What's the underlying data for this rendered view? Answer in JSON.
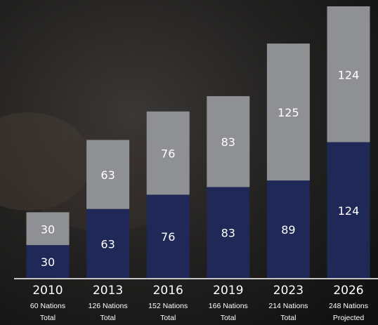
{
  "chart_data": {
    "type": "stacked_bar",
    "categories": [
      "2010",
      "2013",
      "2016",
      "2019",
      "2023",
      "2026"
    ],
    "category_notes": [
      [
        "60 Nations",
        "Total"
      ],
      [
        "126 Nations",
        "Total"
      ],
      [
        "152 Nations",
        "Total"
      ],
      [
        "166 Nations",
        "Total"
      ],
      [
        "214 Nations",
        "Total"
      ],
      [
        "248 Nations",
        "Projected"
      ]
    ],
    "series": [
      {
        "color": "#1f2857",
        "values": [
          30,
          63,
          76,
          83,
          89,
          124
        ]
      },
      {
        "color": "#8f9094",
        "values": [
          30,
          63,
          76,
          83,
          125,
          124
        ]
      }
    ]
  }
}
